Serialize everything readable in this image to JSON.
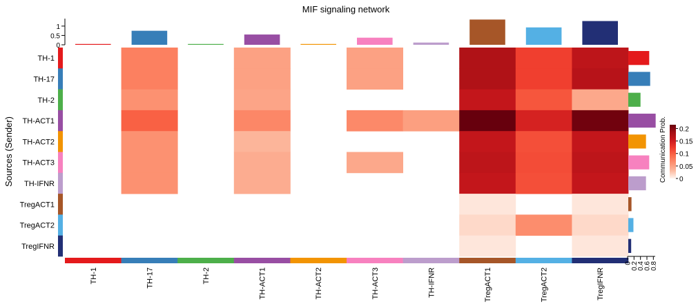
{
  "chart_data": {
    "type": "heatmap",
    "title": "MIF signaling network",
    "ylabel": "Sources (Sender)",
    "legend_title": "Communication Prob.",
    "legend_ticks": [
      "0",
      "0.05",
      "0.1",
      "0.15",
      "0.2"
    ],
    "legend_range": [
      0,
      0.215
    ],
    "legend_colors": [
      "#FFF5F0",
      "#FCBBA1",
      "#FC9272",
      "#FB6A4A",
      "#EF3B2C",
      "#CB181D",
      "#A50F15",
      "#67000D"
    ],
    "rows": [
      "TH-1",
      "TH-17",
      "TH-2",
      "TH-ACT1",
      "TH-ACT2",
      "TH-ACT3",
      "TH-IFNR",
      "TregACT1",
      "TregACT2",
      "TregIFNR"
    ],
    "columns": [
      "TH-1",
      "TH-17",
      "TH-2",
      "TH-ACT1",
      "TH-ACT2",
      "TH-ACT3",
      "TH-IFNR",
      "TregACT1",
      "TregACT2",
      "TregIFNR"
    ],
    "group_colors": [
      "#E41A1C",
      "#377EB8",
      "#4DAF4A",
      "#984EA3",
      "#F29403",
      "#F781BF",
      "#BC9DCC",
      "#A65628",
      "#54B0E4",
      "#222F75"
    ],
    "values": [
      [
        0,
        0.075,
        0,
        0.05,
        0,
        0.05,
        0,
        0.175,
        0.12,
        0.165
      ],
      [
        0,
        0.075,
        0,
        0.05,
        0,
        0.05,
        0,
        0.175,
        0.12,
        0.17
      ],
      [
        0,
        0.062,
        0,
        0.048,
        0,
        0,
        0,
        0.16,
        0.105,
        0.045
      ],
      [
        0,
        0.098,
        0,
        0.07,
        0,
        0.068,
        0.052,
        0.215,
        0.145,
        0.21
      ],
      [
        0,
        0.062,
        0,
        0.035,
        0,
        0,
        0,
        0.16,
        0.11,
        0.16
      ],
      [
        0,
        0.062,
        0,
        0.042,
        0,
        0.045,
        0,
        0.165,
        0.112,
        0.165
      ],
      [
        0,
        0.062,
        0,
        0.042,
        0,
        0,
        0,
        0.16,
        0.11,
        0.16
      ],
      [
        0,
        0,
        0,
        0,
        0,
        0,
        0,
        0.008,
        0,
        0.008
      ],
      [
        0,
        0,
        0,
        0,
        0,
        0,
        0,
        0.015,
        0.065,
        0.015
      ],
      [
        0,
        0,
        0,
        0,
        0,
        0,
        0,
        0.008,
        0,
        0.008
      ]
    ],
    "top_bars": {
      "values": [
        0.03,
        0.75,
        0.03,
        0.55,
        0.03,
        0.38,
        0.12,
        1.35,
        0.93,
        1.27
      ],
      "ticks": [
        "0",
        "0.5",
        "1"
      ],
      "range": [
        0,
        1.4
      ]
    },
    "right_bars": {
      "values": [
        0.65,
        0.68,
        0.38,
        0.85,
        0.55,
        0.65,
        0.55,
        0.1,
        0.16,
        0.09
      ],
      "ticks": [
        "0",
        "0.2",
        "0.4",
        "0.6",
        "0.8"
      ],
      "range": [
        0,
        0.9
      ]
    }
  }
}
